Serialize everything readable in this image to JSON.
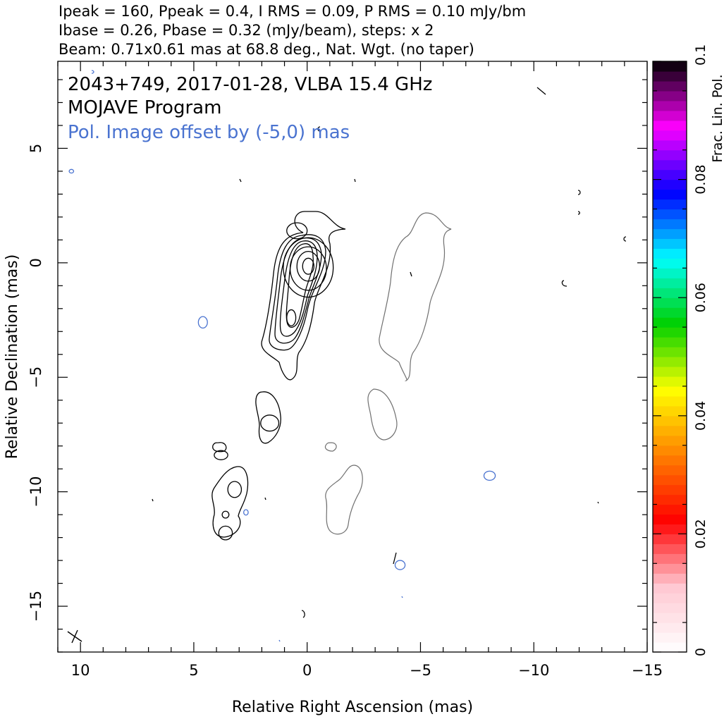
{
  "header": {
    "line1": "Ipeak = 160, Ppeak = 0.4, I RMS = 0.09, P RMS = 0.10 mJy/bm",
    "line2": "Ibase = 0.26, Pbase = 0.32 (mJy/beam), steps: x 2",
    "line3": "Beam: 0.71x0.61 mas at 68.8 deg., Nat. Wgt. (no taper)"
  },
  "annotations": {
    "source": "2043+749, 2017-01-28, VLBA 15.4 GHz",
    "program": "MOJAVE Program",
    "offset_note": "Pol. Image offset by (-5,0) mas"
  },
  "chart_data": {
    "type": "contour",
    "xlabel": "Relative Right Ascension (mas)",
    "ylabel": "Relative Declination (mas)",
    "xlim": [
      11,
      -15
    ],
    "ylim": [
      -17,
      8.8
    ],
    "x_ticks": [
      10,
      5,
      0,
      -5,
      -10,
      -15
    ],
    "x_tick_labels": [
      "10",
      "5",
      "0",
      "−5",
      "−10",
      "−15"
    ],
    "y_ticks": [
      5,
      0,
      -5,
      -10,
      -15
    ],
    "y_tick_labels": [
      "5",
      "0",
      "−5",
      "−10",
      "−15"
    ],
    "colorbar": {
      "label": "Frac. Lin. Pol.",
      "range": [
        0,
        0.1
      ],
      "ticks": [
        0,
        0.02,
        0.04,
        0.06,
        0.08,
        0.1
      ],
      "tick_labels": [
        "0",
        "0.02",
        "0.04",
        "0.06",
        "0.08",
        "0.1"
      ],
      "stops": [
        "#ffffff",
        "#ffc8d2",
        "#ff0000",
        "#ff8000",
        "#ffff00",
        "#00d000",
        "#00ffff",
        "#0000ff",
        "#ff00ff",
        "#000000"
      ]
    },
    "series": [
      {
        "color": "#000000",
        "contours": [
          {
            "ra": -0.05,
            "dec": -0.2,
            "rx": 1.1,
            "ry": 1.3
          },
          {
            "ra": -0.05,
            "dec": -0.25,
            "rx": 0.8,
            "ry": 0.95
          },
          {
            "ra": -0.05,
            "dec": -0.15,
            "rx": 0.5,
            "ry": 0.65
          },
          {
            "ra": -0.05,
            "dec": -0.15,
            "rx": 0.25,
            "ry": 0.35
          },
          {
            "ra": 0.7,
            "dec": -2.4,
            "rx": 0.2,
            "ry": 0.35
          },
          {
            "ra": 0.45,
            "dec": 1.4,
            "rx": 0.45,
            "ry": 0.35
          },
          {
            "ra": 1.65,
            "dec": -7.0,
            "rx": 0.4,
            "ry": 0.35
          },
          {
            "ra": 3.2,
            "dec": -9.9,
            "rx": 0.3,
            "ry": 0.35
          },
          {
            "ra": 3.6,
            "dec": -11.8,
            "rx": 0.3,
            "ry": 0.3
          },
          {
            "ra": 3.6,
            "dec": -11.0,
            "rx": 0.15,
            "ry": 0.15
          },
          {
            "ra": 3.8,
            "dec": -8.4,
            "rx": 0.3,
            "ry": 0.2
          }
        ]
      },
      {
        "color": "#707070",
        "contours": []
      },
      {
        "color": "#4a73d0",
        "contours": [
          {
            "ra": 4.6,
            "dec": -2.6,
            "rx": 0.2,
            "ry": 0.25
          },
          {
            "ra": -8.05,
            "dec": -9.3,
            "rx": 0.25,
            "ry": 0.2
          },
          {
            "ra": 2.7,
            "dec": -10.9,
            "rx": 0.1,
            "ry": 0.12
          },
          {
            "ra": 10.4,
            "dec": 4.0,
            "rx": 0.1,
            "ry": 0.08
          },
          {
            "ra": -4.1,
            "dec": -13.2,
            "rx": 0.22,
            "ry": 0.2
          }
        ]
      }
    ]
  }
}
